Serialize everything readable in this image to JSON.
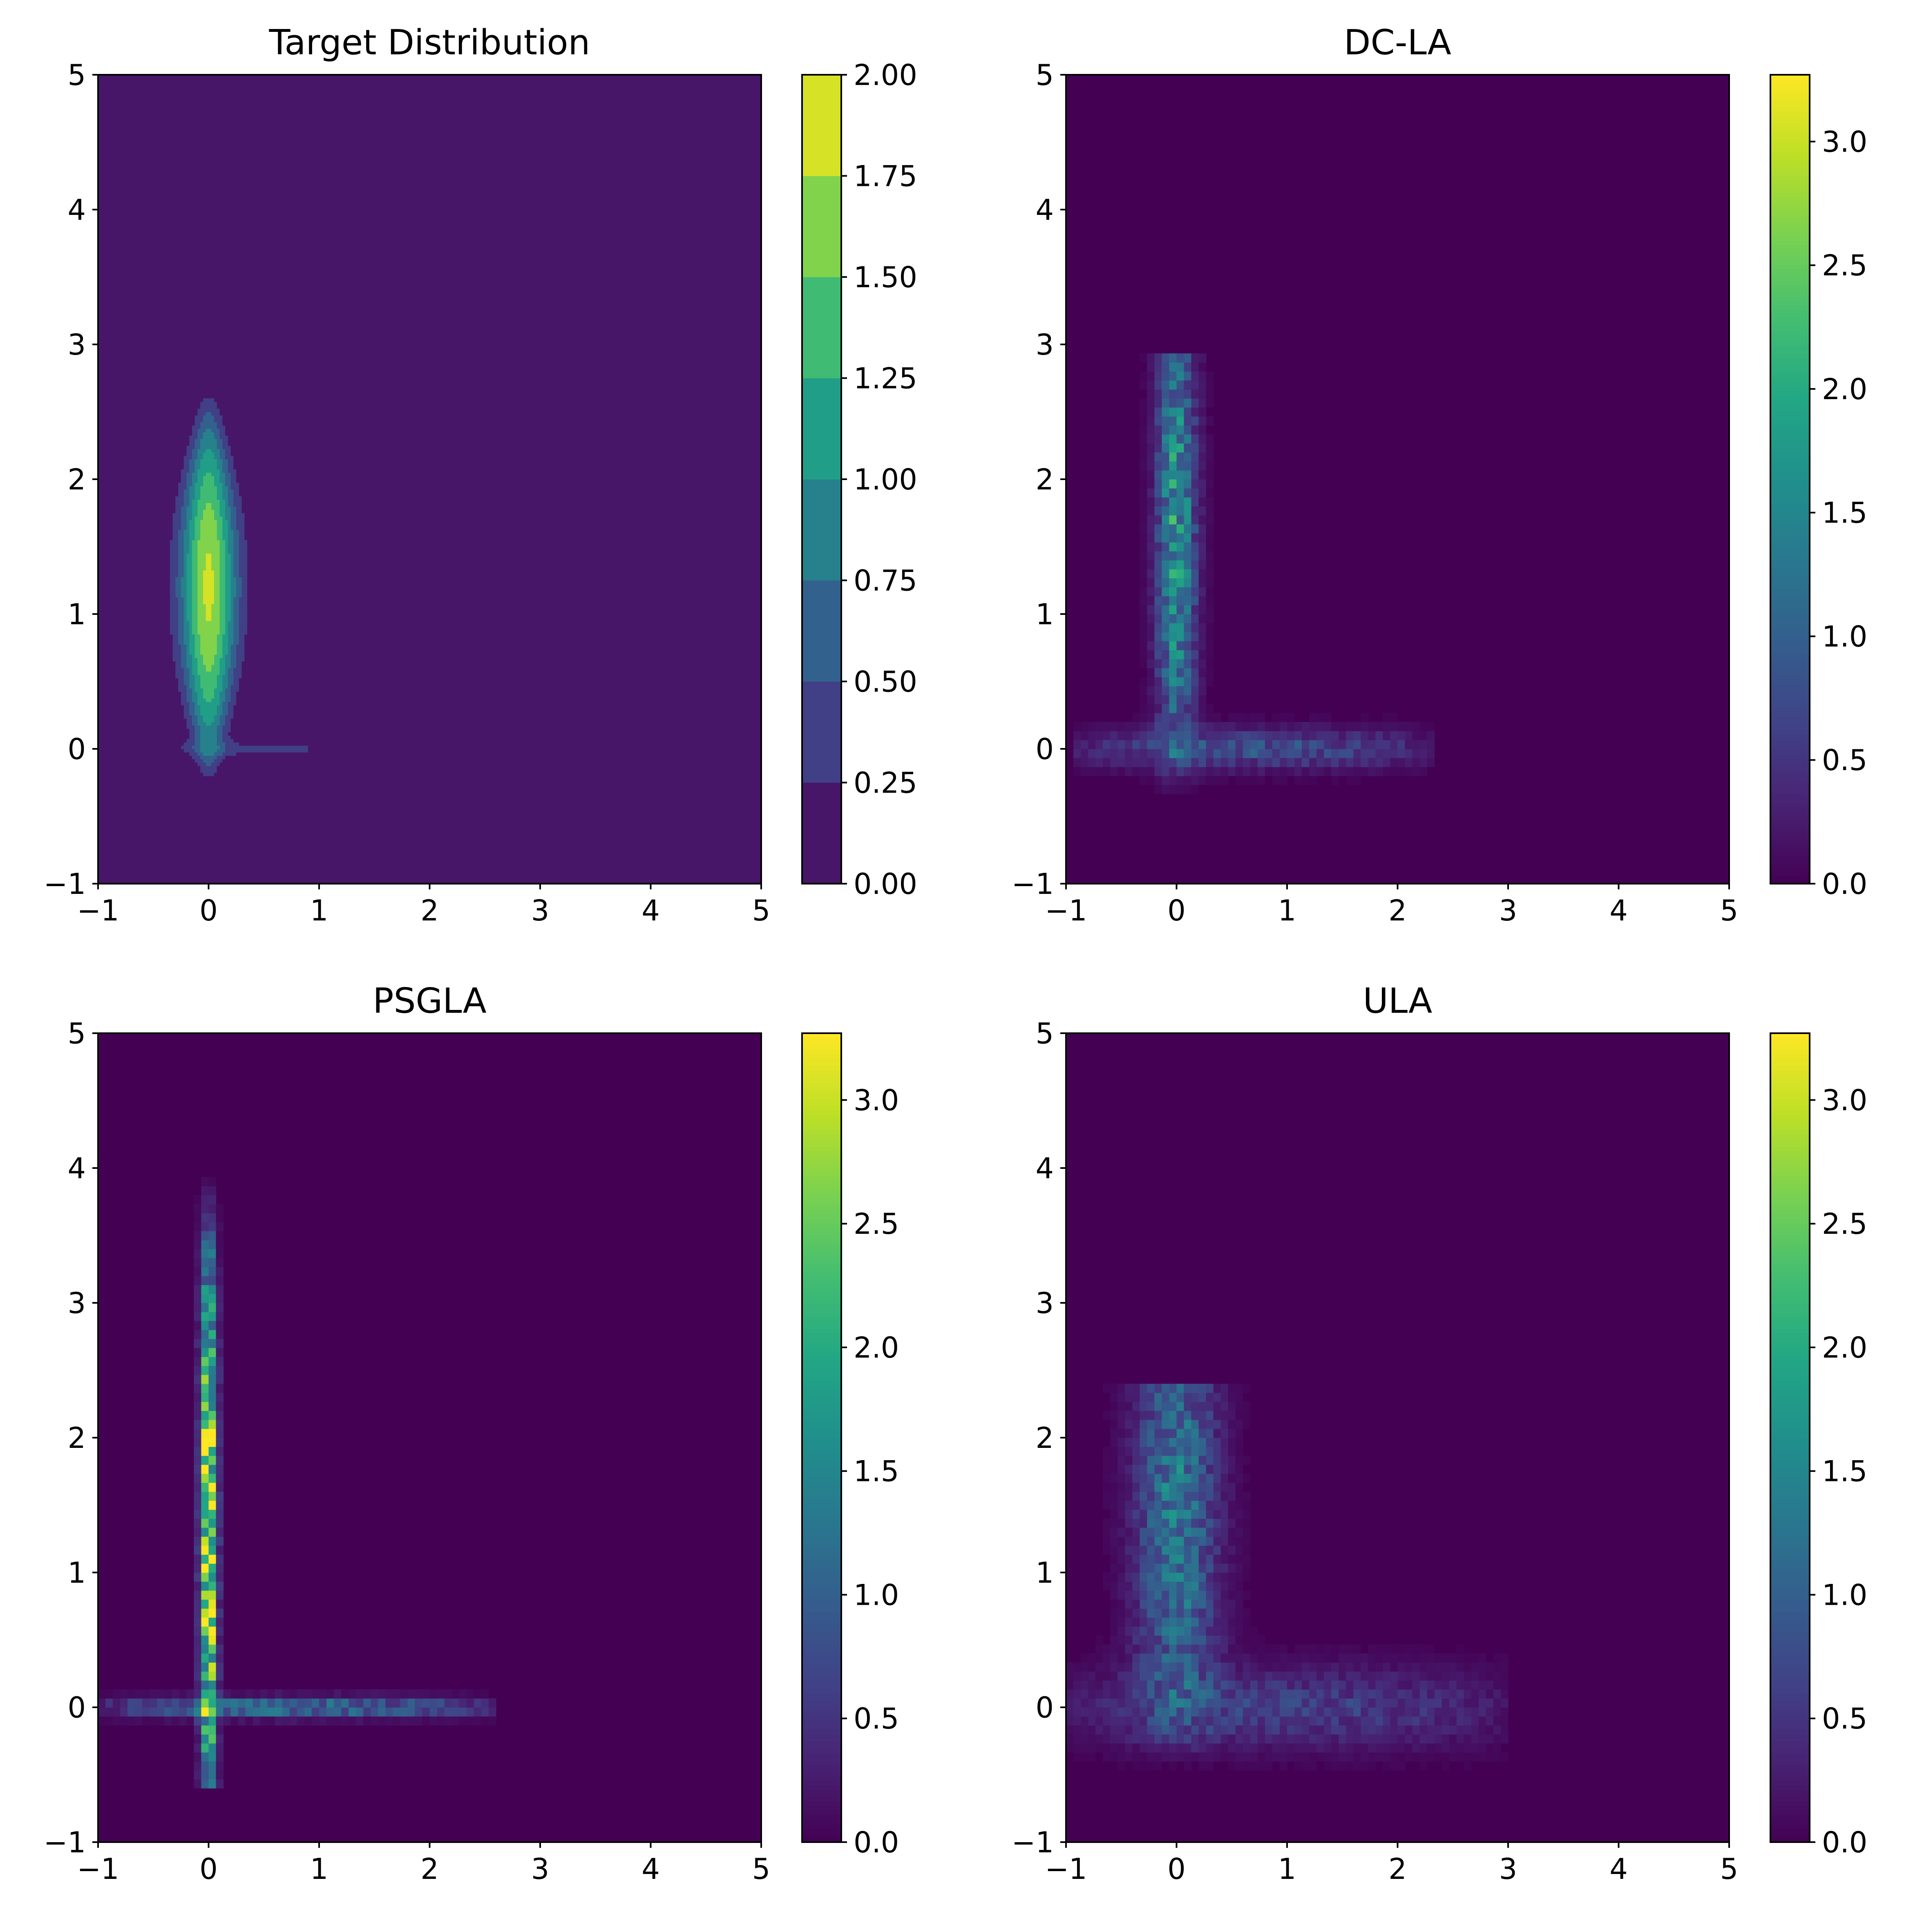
{
  "chart_data": [
    {
      "type": "contour",
      "title": "Target Distribution",
      "xlim": [
        -1,
        5
      ],
      "ylim": [
        -1,
        5
      ],
      "x_ticks": [
        -1,
        0,
        1,
        2,
        3,
        4,
        5
      ],
      "y_ticks": [
        -1,
        0,
        1,
        2,
        3,
        4,
        5
      ],
      "x_tick_labels": [
        "−1",
        "0",
        "1",
        "2",
        "3",
        "4",
        "5"
      ],
      "y_tick_labels": [
        "−1",
        "0",
        "1",
        "2",
        "3",
        "4",
        "5"
      ],
      "colorbar": {
        "min": 0,
        "max": 2.0,
        "ticks": [
          0,
          0.25,
          0.5,
          0.75,
          1.0,
          1.25,
          1.5,
          1.75,
          2.0
        ],
        "tick_labels": [
          "0.00",
          "0.25",
          "0.50",
          "0.75",
          "1.00",
          "1.25",
          "1.50",
          "1.75",
          "2.00"
        ],
        "discrete_levels": 8
      },
      "features": [
        {
          "shape": "vertical-ridge",
          "x_center": 0.0,
          "y_range": [
            -0.2,
            2.6
          ],
          "peak_y": 1.2,
          "peak_density": 1.8
        },
        {
          "shape": "horizontal-ridge",
          "y_center": 0.0,
          "x_range": [
            -0.7,
            1.5
          ],
          "peak_density": 0.3
        }
      ]
    },
    {
      "type": "heatmap",
      "title": "DC-LA",
      "xlim": [
        -1,
        5
      ],
      "ylim": [
        -1,
        5
      ],
      "x_ticks": [
        -1,
        0,
        1,
        2,
        3,
        4,
        5
      ],
      "y_ticks": [
        -1,
        0,
        1,
        2,
        3,
        4,
        5
      ],
      "x_tick_labels": [
        "−1",
        "0",
        "1",
        "2",
        "3",
        "4",
        "5"
      ],
      "y_tick_labels": [
        "−1",
        "0",
        "1",
        "2",
        "3",
        "4",
        "5"
      ],
      "colorbar": {
        "min": 0,
        "max": 3.27,
        "ticks": [
          0,
          0.5,
          1.0,
          1.5,
          2.0,
          2.5,
          3.0
        ],
        "tick_labels": [
          "0.0",
          "0.5",
          "1.0",
          "1.5",
          "2.0",
          "2.5",
          "3.0"
        ]
      },
      "features": [
        {
          "shape": "vertical-band",
          "x_center": 0.0,
          "x_width": 0.12,
          "y_range": [
            -0.7,
            2.9
          ],
          "peak_y": 1.6,
          "peak_density": 1.7
        },
        {
          "shape": "horizontal-band",
          "y_center": 0.0,
          "y_width": 0.1,
          "x_range": [
            -0.9,
            2.3
          ],
          "peak_density": 0.8
        }
      ]
    },
    {
      "type": "heatmap",
      "title": "PSGLA",
      "xlim": [
        -1,
        5
      ],
      "ylim": [
        -1,
        5
      ],
      "x_ticks": [
        -1,
        0,
        1,
        2,
        3,
        4,
        5
      ],
      "y_ticks": [
        -1,
        0,
        1,
        2,
        3,
        4,
        5
      ],
      "x_tick_labels": [
        "−1",
        "0",
        "1",
        "2",
        "3",
        "4",
        "5"
      ],
      "y_tick_labels": [
        "−1",
        "0",
        "1",
        "2",
        "3",
        "4",
        "5"
      ],
      "colorbar": {
        "min": 0,
        "max": 3.27,
        "ticks": [
          0,
          0.5,
          1.0,
          1.5,
          2.0,
          2.5,
          3.0
        ],
        "tick_labels": [
          "0.0",
          "0.5",
          "1.0",
          "1.5",
          "2.0",
          "2.5",
          "3.0"
        ]
      },
      "features": [
        {
          "shape": "vertical-spike",
          "x_center": 0.0,
          "x_width": 0.05,
          "y_range": [
            -0.6,
            4.2
          ],
          "peak_y": 1.3,
          "peak_density": 3.2
        },
        {
          "shape": "horizontal-spike",
          "y_center": 0.0,
          "y_width": 0.05,
          "x_range": [
            -1.0,
            2.6
          ],
          "peak_density": 1.2
        }
      ]
    },
    {
      "type": "heatmap",
      "title": "ULA",
      "xlim": [
        -1,
        5
      ],
      "ylim": [
        -1,
        5
      ],
      "x_ticks": [
        -1,
        0,
        1,
        2,
        3,
        4,
        5
      ],
      "y_ticks": [
        -1,
        0,
        1,
        2,
        3,
        4,
        5
      ],
      "x_tick_labels": [
        "−1",
        "0",
        "1",
        "2",
        "3",
        "4",
        "5"
      ],
      "y_tick_labels": [
        "−1",
        "0",
        "1",
        "2",
        "3",
        "4",
        "5"
      ],
      "colorbar": {
        "min": 0,
        "max": 3.27,
        "ticks": [
          0,
          0.5,
          1.0,
          1.5,
          2.0,
          2.5,
          3.0
        ],
        "tick_labels": [
          "0.0",
          "0.5",
          "1.0",
          "1.5",
          "2.0",
          "2.5",
          "3.0"
        ]
      },
      "features": [
        {
          "shape": "vertical-blob",
          "x_center": 0.0,
          "x_width": 0.25,
          "y_range": [
            -0.9,
            2.4
          ],
          "peak_y": 1.4,
          "peak_density": 1.3
        },
        {
          "shape": "horizontal-blob",
          "y_center": 0.0,
          "y_width": 0.2,
          "x_range": [
            -1.0,
            3.0
          ],
          "peak_density": 0.6
        }
      ]
    }
  ]
}
